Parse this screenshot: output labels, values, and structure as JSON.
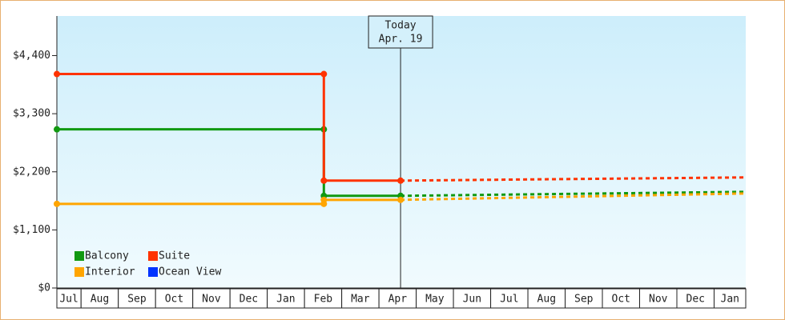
{
  "chart_data": {
    "type": "line",
    "categories": [
      "Jul",
      "Aug",
      "Sep",
      "Oct",
      "Nov",
      "Dec",
      "Jan",
      "Feb",
      "Mar",
      "Apr",
      "May",
      "Jun",
      "Jul",
      "Aug",
      "Sep",
      "Oct",
      "Nov",
      "Dec",
      "Jan"
    ],
    "xlim": [
      0.35,
      18.85
    ],
    "ylim": [
      0,
      5150
    ],
    "yticks": [
      {
        "value": 0,
        "label": "$0"
      },
      {
        "value": 1100,
        "label": "$1,100"
      },
      {
        "value": 2200,
        "label": "$2,200"
      },
      {
        "value": 3300,
        "label": "$3,300"
      },
      {
        "value": 4400,
        "label": "$4,400"
      }
    ],
    "annotation": {
      "title": "Today",
      "date": "Apr. 19",
      "x": 9.58
    },
    "legend": "lower left",
    "series": [
      {
        "name": "Balcony",
        "color": "#119911",
        "x": [
          0.35,
          7.52,
          7.52,
          9.58
        ],
        "values": [
          3004,
          3004,
          1745,
          1745
        ],
        "forecast_x": [
          9.58,
          18.85
        ],
        "forecast_values": [
          1745,
          1821
        ]
      },
      {
        "name": "Suite",
        "color": "#ff3300",
        "x": [
          0.35,
          7.52,
          7.52,
          9.58
        ],
        "values": [
          4051,
          4051,
          2033,
          2033
        ],
        "forecast_x": [
          9.58,
          18.85
        ],
        "forecast_values": [
          2033,
          2094
        ]
      },
      {
        "name": "Interior",
        "color": "#ffa500",
        "x": [
          0.35,
          7.52,
          7.52,
          9.58
        ],
        "values": [
          1593,
          1593,
          1669,
          1669
        ],
        "forecast_x": [
          9.58,
          18.85
        ],
        "forecast_values": [
          1669,
          1790
        ]
      },
      {
        "name": "Ocean View",
        "color": "#0033ff",
        "x": [],
        "values": [],
        "forecast_x": [],
        "forecast_values": []
      }
    ]
  }
}
